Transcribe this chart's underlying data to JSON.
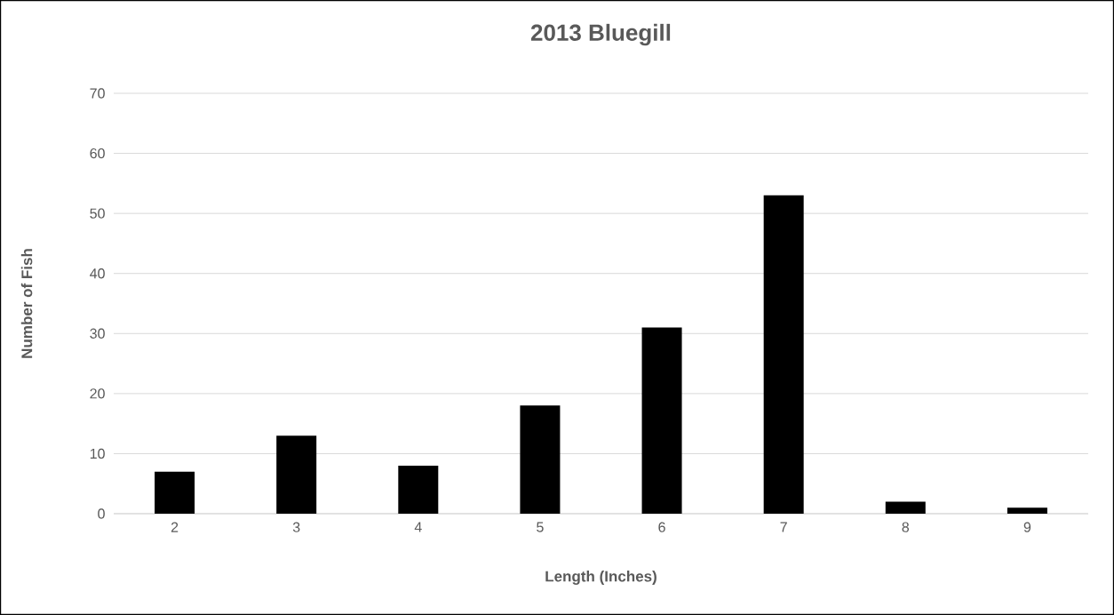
{
  "chart_data": {
    "type": "bar",
    "title": "2013 Bluegill",
    "xlabel": "Length (Inches)",
    "ylabel": "Number of Fish",
    "categories": [
      "2",
      "3",
      "4",
      "5",
      "6",
      "7",
      "8",
      "9"
    ],
    "values": [
      7,
      13,
      8,
      18,
      31,
      53,
      2,
      1
    ],
    "color": "#000000",
    "ylim": [
      0,
      70
    ],
    "yticks": [
      0,
      10,
      20,
      30,
      40,
      50,
      60,
      70
    ],
    "grid": "y"
  }
}
